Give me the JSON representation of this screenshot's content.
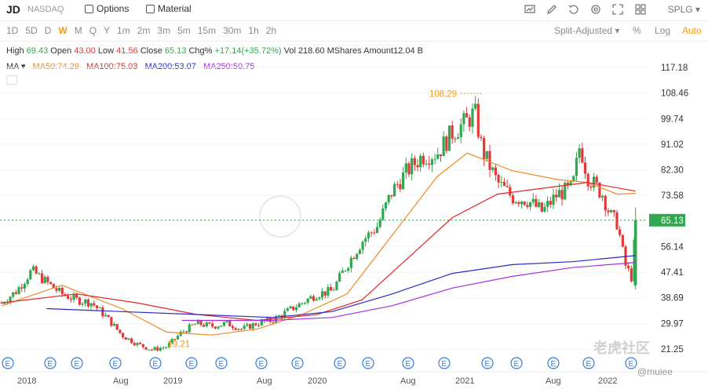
{
  "header": {
    "ticker": "JD",
    "exchange": "NASDAQ",
    "options_label": "Options",
    "material_label": "Material",
    "symbol_select": "SPLG"
  },
  "toolbar_icons": [
    "chart-type-icon",
    "draw-icon",
    "history-icon",
    "settings-icon",
    "fullscreen-icon",
    "layout-icon"
  ],
  "periods": {
    "items": [
      "1D",
      "5D",
      "D",
      "W",
      "M",
      "Q",
      "Y",
      "1m",
      "2m",
      "3m",
      "5m",
      "15m",
      "30m",
      "1h",
      "2h"
    ],
    "active": "W"
  },
  "adjust": {
    "mode": "Split-Adjusted ▾",
    "percent": "%",
    "log": "Log",
    "auto": "Auto"
  },
  "quote": {
    "high_label": "High",
    "high": "69.43",
    "open_label": "Open",
    "open": "43.00",
    "low_label": "Low",
    "low": "41.56",
    "close_label": "Close",
    "close": "65.13",
    "chg_label": "Chg%",
    "chg": "+17.14(+35.72%)",
    "vol": "Vol 218.60 MShares",
    "amount": "Amount12.04 B"
  },
  "ma": {
    "label": "MA ▾",
    "ma50": "MA50:74.29",
    "ma100": "MA100:75.03",
    "ma200": "MA200:53.07",
    "ma250": "MA250:50.75"
  },
  "colors": {
    "up": "#2fa84f",
    "down": "#e03a3a",
    "ma50": "#f08a24",
    "ma100": "#e0262a",
    "ma200": "#2a2ac8",
    "ma250": "#a52fe0",
    "accent": "#f29b16"
  },
  "watermark": {
    "brand": "老虎社区",
    "user": "@muiee"
  },
  "chart_data": {
    "type": "candlestick",
    "y_ticks": [
      "117.18",
      "108.46",
      "99.74",
      "91.02",
      "82.30",
      "73.58",
      "65.13",
      "56.14",
      "47.41",
      "38.69",
      "29.97",
      "21.25"
    ],
    "ylim": [
      21.25,
      117.18
    ],
    "current_price": 65.13,
    "x_labels": [
      "2018",
      "Aug",
      "2019",
      "Aug",
      "2020",
      "Aug",
      "2021",
      "Aug",
      "2022"
    ],
    "annotations": {
      "max": "108.29",
      "min": "19.21"
    },
    "earnings_marker": "E",
    "price": [
      [
        2018.0,
        37
      ],
      [
        2018.1,
        41
      ],
      [
        2018.2,
        48
      ],
      [
        2018.3,
        44
      ],
      [
        2018.4,
        40
      ],
      [
        2018.5,
        38
      ],
      [
        2018.6,
        37
      ],
      [
        2018.7,
        32
      ],
      [
        2018.8,
        26
      ],
      [
        2018.9,
        23
      ],
      [
        2019.0,
        21
      ],
      [
        2019.1,
        22
      ],
      [
        2019.2,
        27
      ],
      [
        2019.3,
        30
      ],
      [
        2019.4,
        29
      ],
      [
        2019.5,
        30
      ],
      [
        2019.6,
        28
      ],
      [
        2019.7,
        30
      ],
      [
        2019.8,
        31
      ],
      [
        2019.9,
        34
      ],
      [
        2020.0,
        37
      ],
      [
        2020.1,
        40
      ],
      [
        2020.2,
        41
      ],
      [
        2020.3,
        50
      ],
      [
        2020.4,
        58
      ],
      [
        2020.5,
        63
      ],
      [
        2020.6,
        75
      ],
      [
        2020.7,
        82
      ],
      [
        2020.8,
        87
      ],
      [
        2020.9,
        88
      ],
      [
        2021.0,
        95
      ],
      [
        2021.1,
        99
      ],
      [
        2021.15,
        102
      ],
      [
        2021.2,
        89
      ],
      [
        2021.3,
        78
      ],
      [
        2021.4,
        73
      ],
      [
        2021.5,
        72
      ],
      [
        2021.6,
        68
      ],
      [
        2021.7,
        74
      ],
      [
        2021.8,
        76
      ],
      [
        2021.85,
        91
      ],
      [
        2021.9,
        80
      ],
      [
        2022.0,
        74
      ],
      [
        2022.05,
        67
      ],
      [
        2022.1,
        64
      ],
      [
        2022.15,
        50
      ],
      [
        2022.2,
        45
      ],
      [
        2022.22,
        65
      ]
    ],
    "series": [
      {
        "name": "MA50",
        "values": [
          [
            2018.0,
            36
          ],
          [
            2018.4,
            43
          ],
          [
            2018.8,
            35
          ],
          [
            2019.1,
            27
          ],
          [
            2019.4,
            26
          ],
          [
            2019.7,
            28
          ],
          [
            2020.0,
            33
          ],
          [
            2020.3,
            40
          ],
          [
            2020.6,
            60
          ],
          [
            2020.9,
            80
          ],
          [
            2021.1,
            88
          ],
          [
            2021.4,
            82
          ],
          [
            2021.7,
            79
          ],
          [
            2021.9,
            78
          ],
          [
            2022.1,
            74
          ],
          [
            2022.22,
            74.29
          ]
        ]
      },
      {
        "name": "MA100",
        "values": [
          [
            2018.0,
            37
          ],
          [
            2018.5,
            40
          ],
          [
            2018.9,
            37
          ],
          [
            2019.3,
            33
          ],
          [
            2019.7,
            31
          ],
          [
            2020.1,
            33
          ],
          [
            2020.4,
            38
          ],
          [
            2020.7,
            52
          ],
          [
            2021.0,
            66
          ],
          [
            2021.3,
            74
          ],
          [
            2021.6,
            76
          ],
          [
            2021.9,
            78
          ],
          [
            2022.22,
            75.03
          ]
        ]
      },
      {
        "name": "MA200",
        "values": [
          [
            2018.3,
            35
          ],
          [
            2018.8,
            34
          ],
          [
            2019.3,
            33
          ],
          [
            2019.8,
            32
          ],
          [
            2020.2,
            34
          ],
          [
            2020.6,
            40
          ],
          [
            2021.0,
            47
          ],
          [
            2021.4,
            50
          ],
          [
            2021.8,
            51
          ],
          [
            2022.22,
            53.07
          ]
        ]
      },
      {
        "name": "MA250",
        "values": [
          [
            2019.2,
            31
          ],
          [
            2019.8,
            31
          ],
          [
            2020.2,
            32
          ],
          [
            2020.6,
            36
          ],
          [
            2021.0,
            42
          ],
          [
            2021.4,
            46
          ],
          [
            2021.8,
            49
          ],
          [
            2022.22,
            50.75
          ]
        ]
      }
    ]
  }
}
